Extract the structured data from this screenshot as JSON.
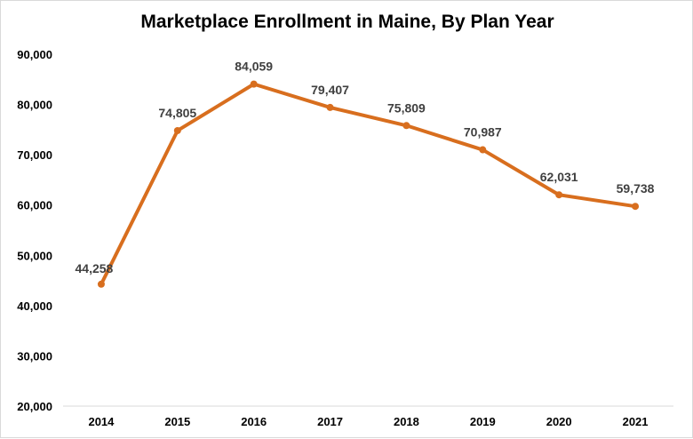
{
  "chart_data": {
    "type": "line",
    "title": "Marketplace Enrollment in Maine, By Plan Year",
    "xlabel": "",
    "ylabel": "",
    "categories": [
      "2014",
      "2015",
      "2016",
      "2017",
      "2018",
      "2019",
      "2020",
      "2021"
    ],
    "series": [
      {
        "name": "Marketplace Enrollment",
        "values": [
          44258,
          74805,
          84059,
          79407,
          75809,
          70987,
          62031,
          59738
        ],
        "data_labels": [
          "44,258",
          "74,805",
          "84,059",
          "79,407",
          "75,809",
          "70,987",
          "62,031",
          "59,738"
        ]
      }
    ],
    "y_ticks": [
      20000,
      30000,
      40000,
      50000,
      60000,
      70000,
      80000,
      90000
    ],
    "y_tick_labels": [
      "20,000",
      "30,000",
      "40,000",
      "50,000",
      "60,000",
      "70,000",
      "80,000",
      "90,000"
    ],
    "ylim": [
      20000,
      90000
    ],
    "grid": false,
    "legend": "none",
    "colors": {
      "line": "#D86E1E",
      "axis": "#d9d9d9",
      "label": "#404040"
    }
  }
}
